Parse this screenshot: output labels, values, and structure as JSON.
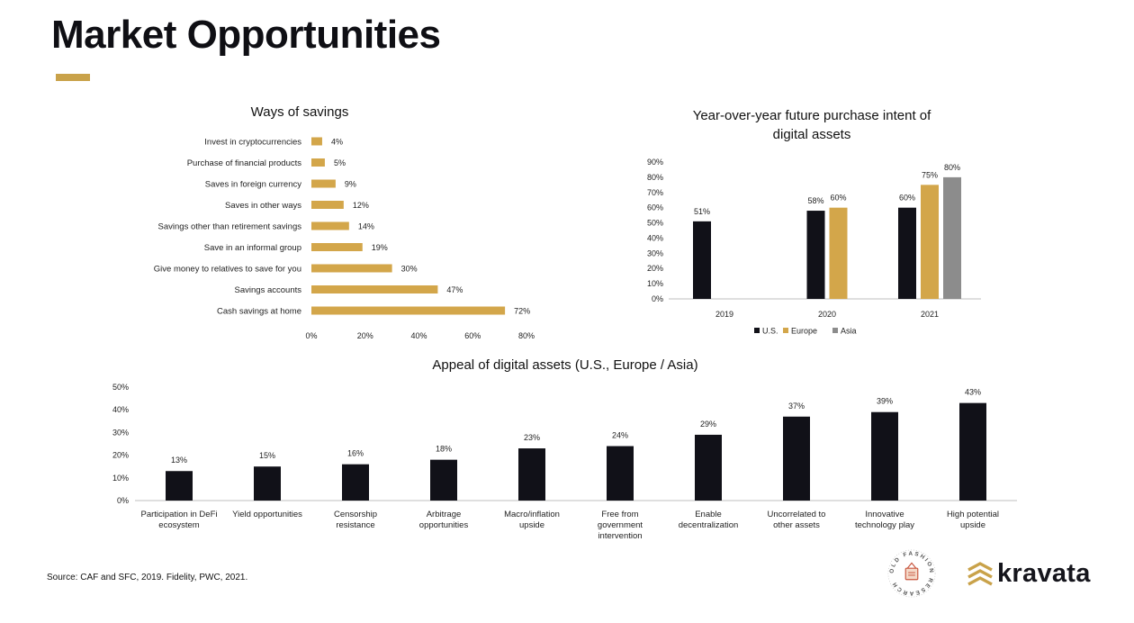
{
  "page": {
    "title": "Market Opportunities",
    "accent_color": "#c9a24a"
  },
  "chart_data": [
    {
      "id": "ways-of-savings",
      "type": "bar",
      "orientation": "horizontal",
      "title": "Ways of savings",
      "categories": [
        "Invest in cryptocurrencies",
        "Purchase of financial products",
        "Saves in foreign currency",
        "Saves in other ways",
        "Savings other than retirement savings",
        "Save in an informal group",
        "Give money to relatives to save for you",
        "Savings accounts",
        "Cash savings at home"
      ],
      "values": [
        4,
        5,
        9,
        12,
        14,
        19,
        30,
        47,
        72
      ],
      "value_labels": [
        "4%",
        "5%",
        "9%",
        "12%",
        "14%",
        "19%",
        "30%",
        "47%",
        "72%"
      ],
      "xlim": [
        0,
        80
      ],
      "x_ticks": [
        "0%",
        "20%",
        "40%",
        "60%",
        "80%"
      ],
      "color": "#d3a64a"
    },
    {
      "id": "purchase-intent",
      "type": "bar",
      "title": "Year-over-year future purchase intent of digital assets",
      "title_lines": [
        "Year-over-year future purchase intent of",
        "digital assets"
      ],
      "categories": [
        "2019",
        "2020",
        "2021"
      ],
      "series": [
        {
          "name": "U.S.",
          "color": "#111118",
          "values": [
            51,
            58,
            60
          ],
          "labels": [
            "51%",
            "58%",
            "60%"
          ]
        },
        {
          "name": "Europe",
          "color": "#d3a64a",
          "values": [
            null,
            60,
            75
          ],
          "labels": [
            "",
            "60%",
            "75%"
          ]
        },
        {
          "name": "Asia",
          "color": "#8c8c8c",
          "values": [
            null,
            null,
            80
          ],
          "labels": [
            "",
            "",
            "80%"
          ]
        }
      ],
      "ylim": [
        0,
        90
      ],
      "y_ticks": [
        "0%",
        "10%",
        "20%",
        "30%",
        "40%",
        "50%",
        "60%",
        "70%",
        "80%",
        "90%"
      ],
      "legend": [
        "U.S.",
        "Europe",
        "Asia"
      ],
      "legend_position": "bottom"
    },
    {
      "id": "appeal-digital-assets",
      "type": "bar",
      "title": "Appeal of digital assets (U.S., Europe / Asia)",
      "categories": [
        [
          "Participation in DeFi",
          "ecosystem"
        ],
        [
          "Yield opportunities"
        ],
        [
          "Censorship",
          "resistance"
        ],
        [
          "Arbitrage",
          "opportunities"
        ],
        [
          "Macro/inflation",
          "upside"
        ],
        [
          "Free from",
          "government",
          "intervention"
        ],
        [
          "Enable",
          "decentralization"
        ],
        [
          "Uncorrelated to",
          "other assets"
        ],
        [
          "Innovative",
          "technology play"
        ],
        [
          "High potential",
          "upside"
        ]
      ],
      "values": [
        13,
        15,
        16,
        18,
        23,
        24,
        29,
        37,
        39,
        43
      ],
      "value_labels": [
        "13%",
        "15%",
        "16%",
        "18%",
        "23%",
        "24%",
        "29%",
        "37%",
        "39%",
        "43%"
      ],
      "ylim": [
        0,
        50
      ],
      "y_ticks": [
        "0%",
        "10%",
        "20%",
        "30%",
        "40%",
        "50%"
      ],
      "color": "#111118"
    }
  ],
  "footer": {
    "source": "Source: CAF and SFC, 2019. Fidelity,  PWC, 2021.",
    "seal_text": "OLD FASHION RESEARCH",
    "brand": "kravata"
  }
}
